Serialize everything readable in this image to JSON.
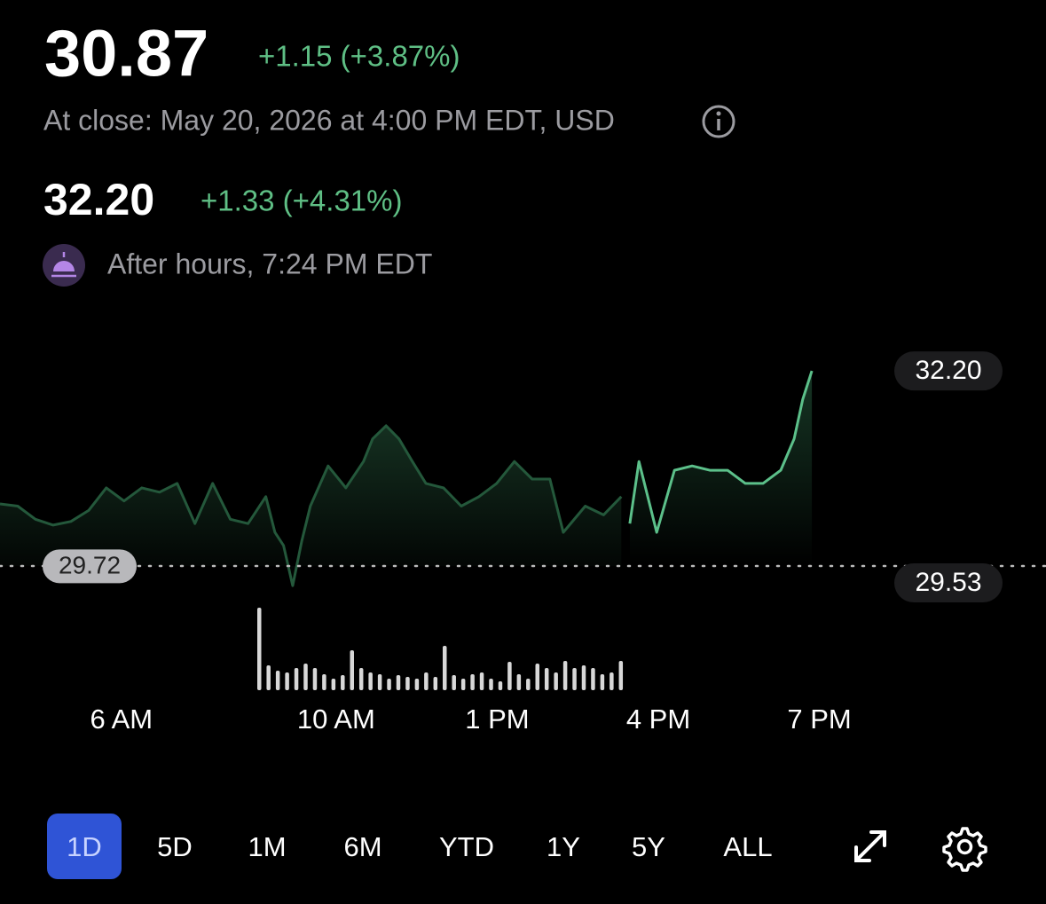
{
  "quote": {
    "price": "30.87",
    "change": "+1.15 (+3.87%)",
    "status": "At close: May 20, 2026 at 4:00 PM EDT, USD"
  },
  "after_hours": {
    "price": "32.20",
    "change": "+1.33 (+4.31%)",
    "status": "After hours, 7:24 PM EDT"
  },
  "chart_data": {
    "type": "line",
    "xlim": [
      3.74,
      23.22
    ],
    "ylim": [
      29.02,
      32.42
    ],
    "xticks": [
      {
        "value": 6,
        "label": "6 AM"
      },
      {
        "value": 10,
        "label": "10 AM"
      },
      {
        "value": 13,
        "label": "1 PM"
      },
      {
        "value": 16,
        "label": "4 PM"
      },
      {
        "value": 19,
        "label": "7 PM"
      }
    ],
    "series": [
      {
        "color": "#24583b",
        "x": [
          3.74,
          4.07,
          4.4,
          4.73,
          5.06,
          5.39,
          5.72,
          6.05,
          6.38,
          6.71,
          7.04,
          7.37,
          7.7,
          8.03,
          8.36,
          8.69,
          8.86,
          9.02,
          9.19,
          9.36,
          9.52,
          9.85,
          10.18,
          10.51,
          10.68,
          10.93,
          11.17,
          11.42,
          11.67,
          12.0,
          12.33,
          12.66,
          12.99,
          13.32,
          13.65,
          13.98,
          14.23,
          14.64,
          14.98,
          15.31
        ],
        "values": [
          30.38,
          30.35,
          30.17,
          30.09,
          30.14,
          30.29,
          30.6,
          30.42,
          30.6,
          30.54,
          30.66,
          30.11,
          30.66,
          30.17,
          30.11,
          30.48,
          29.99,
          29.81,
          29.26,
          29.87,
          30.35,
          30.9,
          30.6,
          30.96,
          31.27,
          31.45,
          31.27,
          30.96,
          30.66,
          30.6,
          30.35,
          30.48,
          30.66,
          30.96,
          30.72,
          30.72,
          29.99,
          30.35,
          30.23,
          30.48
        ]
      },
      {
        "color": "#5cc08a",
        "x": [
          15.47,
          15.64,
          15.97,
          16.3,
          16.63,
          16.96,
          17.29,
          17.62,
          17.95,
          18.28,
          18.53,
          18.69,
          18.86
        ],
        "values": [
          30.11,
          30.96,
          29.99,
          30.84,
          30.9,
          30.84,
          30.84,
          30.66,
          30.66,
          30.84,
          31.27,
          31.81,
          32.2
        ]
      }
    ],
    "reference": {
      "value": 29.53,
      "label": "29.53"
    },
    "open_label": {
      "value": 29.72,
      "label": "29.72"
    },
    "last_label": {
      "value": 32.2,
      "label": "32.20"
    },
    "volume": {
      "color": "#d8d8d8",
      "ylim": [
        0,
        100
      ],
      "values": [
        93,
        28,
        22,
        20,
        25,
        30,
        25,
        18,
        13,
        17,
        45,
        25,
        20,
        18,
        13,
        17,
        15,
        13,
        20,
        15,
        50,
        17,
        13,
        18,
        20,
        13,
        10,
        32,
        18,
        13,
        30,
        25,
        20,
        33,
        25,
        28,
        25,
        18,
        20,
        33
      ]
    }
  },
  "periods": [
    "1D",
    "5D",
    "1M",
    "6M",
    "YTD",
    "1Y",
    "5Y",
    "ALL"
  ],
  "active_period": "1D"
}
